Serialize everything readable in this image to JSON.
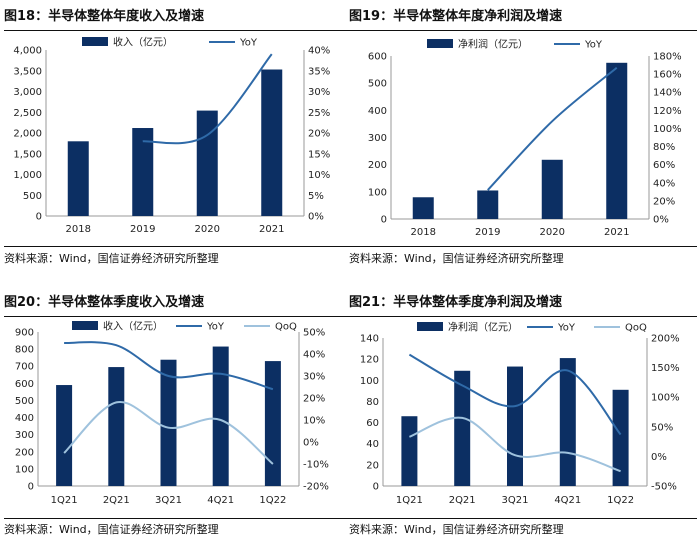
{
  "colors": {
    "bar": "#0c2f63",
    "yoy": "#2f6aa8",
    "qoq": "#9fc2dd",
    "rule": "#111111"
  },
  "chart_data": [
    {
      "id": "fig18",
      "type": "bar",
      "title": "图18：半导体整体年度收入及增速",
      "source": "资料来源：Wind，国信证券经济研究所整理",
      "categories": [
        "2018",
        "2019",
        "2020",
        "2021"
      ],
      "series": [
        {
          "name": "收入（亿元）",
          "kind": "bar",
          "axis": "left",
          "values": [
            1800,
            2120,
            2540,
            3530
          ]
        },
        {
          "name": "YoY",
          "kind": "line",
          "axis": "right",
          "values": [
            null,
            18,
            19.5,
            39
          ]
        }
      ],
      "left_axis": {
        "min": 0,
        "max": 4000,
        "step": 500,
        "labels": [
          "0",
          "500",
          "1,000",
          "1,500",
          "2,000",
          "2,500",
          "3,000",
          "3,500",
          "4,000"
        ]
      },
      "right_axis": {
        "min": 0,
        "max": 40,
        "step": 5,
        "labels": [
          "0%",
          "5%",
          "10%",
          "15%",
          "20%",
          "25%",
          "30%",
          "35%",
          "40%"
        ]
      },
      "legend": "top"
    },
    {
      "id": "fig19",
      "type": "bar",
      "title": "图19：半导体整体年度净利润及增速",
      "source": "资料来源：Wind，国信证券经济研究所整理",
      "categories": [
        "2018",
        "2019",
        "2020",
        "2021"
      ],
      "series": [
        {
          "name": "净利润（亿元）",
          "kind": "bar",
          "axis": "left",
          "values": [
            80,
            105,
            218,
            575
          ]
        },
        {
          "name": "YoY",
          "kind": "line",
          "axis": "right",
          "values": [
            null,
            32,
            108,
            167
          ]
        }
      ],
      "left_axis": {
        "min": 0,
        "max": 600,
        "step": 100,
        "labels": [
          "0",
          "100",
          "200",
          "300",
          "400",
          "500",
          "600"
        ]
      },
      "right_axis": {
        "min": 0,
        "max": 180,
        "step": 20,
        "labels": [
          "0%",
          "20%",
          "40%",
          "60%",
          "80%",
          "100%",
          "120%",
          "140%",
          "160%",
          "180%"
        ]
      },
      "legend": "top"
    },
    {
      "id": "fig20",
      "type": "bar",
      "title": "图20：半导体整体季度收入及增速",
      "source": "资料来源：Wind，国信证券经济研究所整理",
      "categories": [
        "1Q21",
        "2Q21",
        "3Q21",
        "4Q21",
        "1Q22"
      ],
      "series": [
        {
          "name": "收入（亿元）",
          "kind": "bar",
          "axis": "left",
          "values": [
            590,
            695,
            738,
            815,
            730
          ]
        },
        {
          "name": "YoY",
          "kind": "line",
          "axis": "right",
          "values": [
            45,
            44,
            30,
            31,
            24
          ]
        },
        {
          "name": "QoQ",
          "kind": "line",
          "axis": "right",
          "values": [
            -5,
            18,
            6.5,
            10,
            -10
          ]
        }
      ],
      "left_axis": {
        "min": 0,
        "max": 900,
        "step": 100,
        "labels": [
          "0",
          "100",
          "200",
          "300",
          "400",
          "500",
          "600",
          "700",
          "800",
          "900"
        ]
      },
      "right_axis": {
        "min": -20,
        "max": 50,
        "step": 10,
        "labels": [
          "-20%",
          "-10%",
          "0%",
          "10%",
          "20%",
          "30%",
          "40%",
          "50%"
        ]
      },
      "legend": "top"
    },
    {
      "id": "fig21",
      "type": "bar",
      "title": "图21：半导体整体季度净利润及增速",
      "source": "资料来源：Wind，国信证券经济研究所整理",
      "categories": [
        "1Q21",
        "2Q21",
        "3Q21",
        "4Q21",
        "1Q22"
      ],
      "series": [
        {
          "name": "净利润（亿元）",
          "kind": "bar",
          "axis": "left",
          "values": [
            66,
            109,
            113,
            121,
            91
          ]
        },
        {
          "name": "YoY",
          "kind": "line",
          "axis": "right",
          "values": [
            172,
            120,
            85,
            145,
            37
          ]
        },
        {
          "name": "QoQ",
          "kind": "line",
          "axis": "right",
          "values": [
            33,
            65,
            2,
            6,
            -25
          ]
        }
      ],
      "left_axis": {
        "min": 0,
        "max": 140,
        "step": 20,
        "labels": [
          "0",
          "20",
          "40",
          "60",
          "80",
          "100",
          "120",
          "140"
        ]
      },
      "right_axis": {
        "min": -50,
        "max": 200,
        "step": 50,
        "labels": [
          "-50%",
          "0%",
          "50%",
          "100%",
          "150%",
          "200%"
        ]
      },
      "legend": "top"
    }
  ]
}
